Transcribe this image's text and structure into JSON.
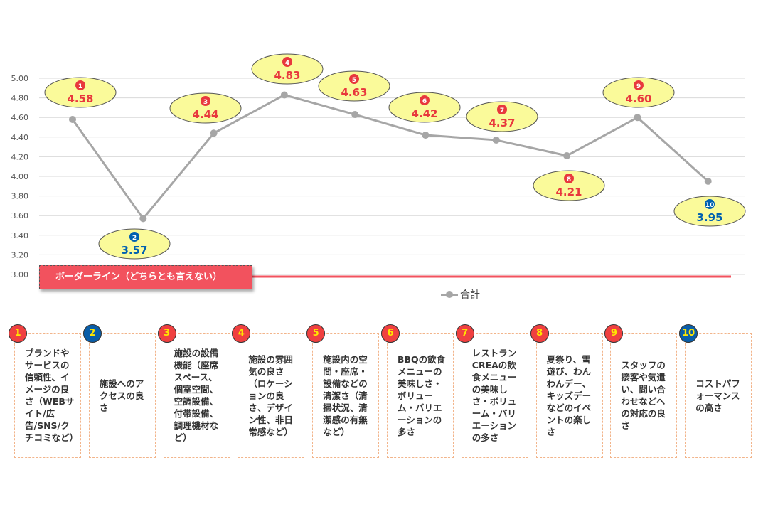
{
  "chart_data": {
    "type": "line",
    "categories": [
      "1",
      "2",
      "3",
      "4",
      "5",
      "6",
      "7",
      "8",
      "9",
      "10"
    ],
    "series": [
      {
        "name": "合計",
        "values": [
          4.58,
          3.57,
          4.44,
          4.83,
          4.63,
          4.42,
          4.37,
          4.21,
          4.6,
          3.95
        ]
      }
    ],
    "ylim": [
      3.0,
      5.0
    ],
    "yticks": [
      "3.00",
      "3.20",
      "3.40",
      "3.60",
      "3.80",
      "4.00",
      "4.20",
      "4.40",
      "4.60",
      "4.80",
      "5.00"
    ],
    "data_labels": [
      "4.58",
      "3.57",
      "4.44",
      "4.83",
      "4.63",
      "4.42",
      "4.37",
      "4.21",
      "4.60",
      "3.95"
    ],
    "marker_labels": [
      "❶",
      "❷",
      "❸",
      "❹",
      "❺",
      "❻",
      "❼",
      "❽",
      "❾",
      "❿"
    ],
    "marker_colors": [
      "#e8383d",
      "#0060b0",
      "#e8383d",
      "#e8383d",
      "#e8383d",
      "#e8383d",
      "#e8383d",
      "#e8383d",
      "#e8383d",
      "#0060b0"
    ],
    "grid": true,
    "legend": "bottom",
    "borderline": {
      "value": 3.0,
      "label": "ボーダーライン（どちらとも言えない）",
      "color": "#f2525e"
    },
    "line_color": "#a6a6a6"
  },
  "items": [
    {
      "num": "1",
      "color": "#f04040",
      "text": "ブランドやサービスの信頼性、イメージの良さ（WEBサイト/広告/SNS/クチコミなど）"
    },
    {
      "num": "2",
      "color": "#0a5ea8",
      "text": "施設へのアクセスの良さ"
    },
    {
      "num": "3",
      "color": "#f04040",
      "text": "施設の設備機能（座席スペース、個室空間、空調設備、付帯設備、調理機材など）"
    },
    {
      "num": "4",
      "color": "#f04040",
      "text": "施設の雰囲気の良さ（ロケーションの良さ、デザイン性、非日常感など）"
    },
    {
      "num": "5",
      "color": "#f04040",
      "text": "施設内の空間・座席・設備などの清潔さ（清掃状況、清潔感の有無など）"
    },
    {
      "num": "6",
      "color": "#f04040",
      "text": "BBQの飲食メニューの美味しさ・ボリューム・バリエーションの多さ"
    },
    {
      "num": "7",
      "color": "#f04040",
      "text": "レストランCREAの飲食メニューの美味しさ・ボリューム・バリエーションの多さ"
    },
    {
      "num": "8",
      "color": "#f04040",
      "text": "夏祭り、雪遊び、わんわんデー、キッズデーなどのイベントの楽しさ"
    },
    {
      "num": "9",
      "color": "#f04040",
      "text": "スタッフの接客や気遣い、問い合わせなどへの対応の良さ"
    },
    {
      "num": "10",
      "color": "#0a5ea8",
      "text": "コストパフォーマンスの高さ"
    }
  ]
}
